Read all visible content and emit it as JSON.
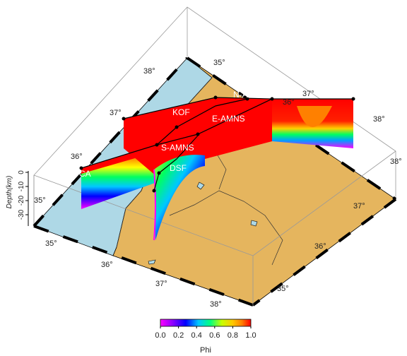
{
  "colors": {
    "land": "#e5b55e",
    "sea": "#aed8e6",
    "frame": "#000000",
    "box": "#999999",
    "fault_label": "#ffffff"
  },
  "map": {
    "lon_ticks_front": [
      "35°",
      "36°",
      "37°",
      "38°"
    ],
    "lon_ticks_back": [
      "35°",
      "36°",
      "37°"
    ],
    "lat_ticks_left": [
      "35°",
      "36°",
      "37°",
      "38°"
    ],
    "lat_ticks_right": [
      "35°",
      "36°",
      "37°",
      "38°"
    ]
  },
  "depth_axis": {
    "label": "Depth(km)",
    "ticks": [
      "0",
      "-10",
      "-20",
      "-30"
    ]
  },
  "fault_labels": {
    "namns": "N-AMNS",
    "kof": "KOF",
    "eamns": "E-AMNS",
    "samns": "S-AMNS",
    "ca": "CA",
    "dsf": "DSF"
  },
  "colorbar": {
    "ticks": [
      "0.0",
      "0.2",
      "0.4",
      "0.6",
      "0.8",
      "1.0"
    ],
    "label": "Phi",
    "min": 0,
    "max": 1
  }
}
